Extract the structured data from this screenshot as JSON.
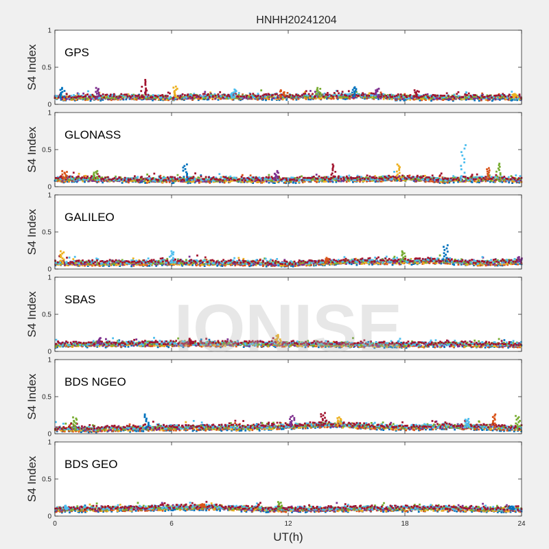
{
  "figure_title": "HNHH20241204",
  "watermark": "IONISE",
  "xlabel": "UT(h)",
  "x_ticks": [
    "0",
    "6",
    "12",
    "18",
    "24"
  ],
  "chart_data": {
    "type": "scatter",
    "title": "HNHH20241204",
    "xlabel": "UT(h)",
    "ylabel": "S4 Index",
    "xlim": [
      0,
      24
    ],
    "ylim": [
      0,
      1
    ],
    "x_ticks": [
      0,
      6,
      12,
      18,
      24
    ],
    "y_ticks": [
      0,
      0.5,
      1
    ],
    "y_tick_labels": [
      "0",
      "0.5",
      "1"
    ],
    "grid": false,
    "series_colors": [
      "#0072BD",
      "#D95319",
      "#EDB120",
      "#7E2F8E",
      "#77AC30",
      "#4DBEEE",
      "#A2142F"
    ],
    "panels": [
      {
        "name": "GPS",
        "ylabel": "S4 Index",
        "baseline": [
          [
            0,
            0.09
          ],
          [
            2,
            0.09
          ],
          [
            4,
            0.1
          ],
          [
            6,
            0.09
          ],
          [
            8,
            0.1
          ],
          [
            10,
            0.1
          ],
          [
            12,
            0.1
          ],
          [
            14,
            0.11
          ],
          [
            16,
            0.11
          ],
          [
            18,
            0.09
          ],
          [
            20,
            0.09
          ],
          [
            22,
            0.09
          ],
          [
            24,
            0.09
          ]
        ],
        "peaks": [
          [
            0.4,
            0.22
          ],
          [
            2.2,
            0.22
          ],
          [
            4.6,
            0.33
          ],
          [
            6.2,
            0.24
          ],
          [
            9.2,
            0.2
          ],
          [
            11.7,
            0.19
          ],
          [
            13.6,
            0.22
          ],
          [
            15.4,
            0.23
          ],
          [
            16.6,
            0.21
          ],
          [
            18.6,
            0.19
          ],
          [
            23.7,
            0.14
          ]
        ]
      },
      {
        "name": "GLONASS",
        "ylabel": "S4 Index",
        "baseline": [
          [
            0,
            0.1
          ],
          [
            2,
            0.1
          ],
          [
            4,
            0.09
          ],
          [
            6,
            0.09
          ],
          [
            8,
            0.09
          ],
          [
            10,
            0.09
          ],
          [
            12,
            0.09
          ],
          [
            14,
            0.1
          ],
          [
            16,
            0.1
          ],
          [
            18,
            0.11
          ],
          [
            20,
            0.09
          ],
          [
            22,
            0.1
          ],
          [
            24,
            0.09
          ]
        ],
        "peaks": [
          [
            0.5,
            0.21
          ],
          [
            2.1,
            0.21
          ],
          [
            6.7,
            0.3
          ],
          [
            11.4,
            0.21
          ],
          [
            14.3,
            0.3
          ],
          [
            17.7,
            0.3
          ],
          [
            21.0,
            0.56
          ],
          [
            22.3,
            0.25
          ],
          [
            22.8,
            0.31
          ]
        ]
      },
      {
        "name": "GALILEO",
        "ylabel": "S4 Index",
        "baseline": [
          [
            0,
            0.08
          ],
          [
            2,
            0.08
          ],
          [
            4,
            0.08
          ],
          [
            6,
            0.09
          ],
          [
            8,
            0.08
          ],
          [
            10,
            0.08
          ],
          [
            12,
            0.07
          ],
          [
            14,
            0.09
          ],
          [
            16,
            0.1
          ],
          [
            18,
            0.1
          ],
          [
            20,
            0.11
          ],
          [
            21,
            0.09
          ],
          [
            22,
            0.08
          ],
          [
            24,
            0.1
          ]
        ],
        "peaks": [
          [
            0.4,
            0.24
          ],
          [
            6.0,
            0.24
          ],
          [
            14.0,
            0.15
          ],
          [
            17.9,
            0.24
          ],
          [
            20.1,
            0.32
          ],
          [
            23.9,
            0.16
          ]
        ]
      },
      {
        "name": "SBAS",
        "ylabel": "S4 Index",
        "baseline": [
          [
            0,
            0.09
          ],
          [
            4,
            0.1
          ],
          [
            8,
            0.1
          ],
          [
            12,
            0.1
          ],
          [
            16,
            0.09
          ],
          [
            20,
            0.09
          ],
          [
            24,
            0.09
          ]
        ],
        "peaks": [
          [
            2.3,
            0.18
          ],
          [
            7.0,
            0.17
          ],
          [
            11.5,
            0.22
          ]
        ]
      },
      {
        "name": "BDS NGEO",
        "ylabel": "S4 Index",
        "baseline": [
          [
            0,
            0.07
          ],
          [
            2,
            0.06
          ],
          [
            4,
            0.07
          ],
          [
            6,
            0.08
          ],
          [
            8,
            0.08
          ],
          [
            10,
            0.08
          ],
          [
            12,
            0.1
          ],
          [
            14,
            0.12
          ],
          [
            16,
            0.1
          ],
          [
            18,
            0.08
          ],
          [
            20,
            0.1
          ],
          [
            22,
            0.09
          ],
          [
            24,
            0.07
          ]
        ],
        "peaks": [
          [
            1.0,
            0.22
          ],
          [
            4.7,
            0.26
          ],
          [
            12.2,
            0.24
          ],
          [
            13.8,
            0.28
          ],
          [
            14.6,
            0.22
          ],
          [
            21.2,
            0.2
          ],
          [
            22.6,
            0.26
          ],
          [
            23.8,
            0.24
          ]
        ]
      },
      {
        "name": "BDS GEO",
        "ylabel": "S4 Index",
        "baseline": [
          [
            0,
            0.09
          ],
          [
            4,
            0.1
          ],
          [
            7.5,
            0.12
          ],
          [
            10,
            0.1
          ],
          [
            12,
            0.09
          ],
          [
            16,
            0.1
          ],
          [
            20,
            0.1
          ],
          [
            24,
            0.09
          ]
        ],
        "peaks": [
          [
            0.6,
            0.14
          ],
          [
            7.6,
            0.16
          ],
          [
            11.6,
            0.19
          ],
          [
            23.5,
            0.13
          ]
        ]
      }
    ]
  }
}
